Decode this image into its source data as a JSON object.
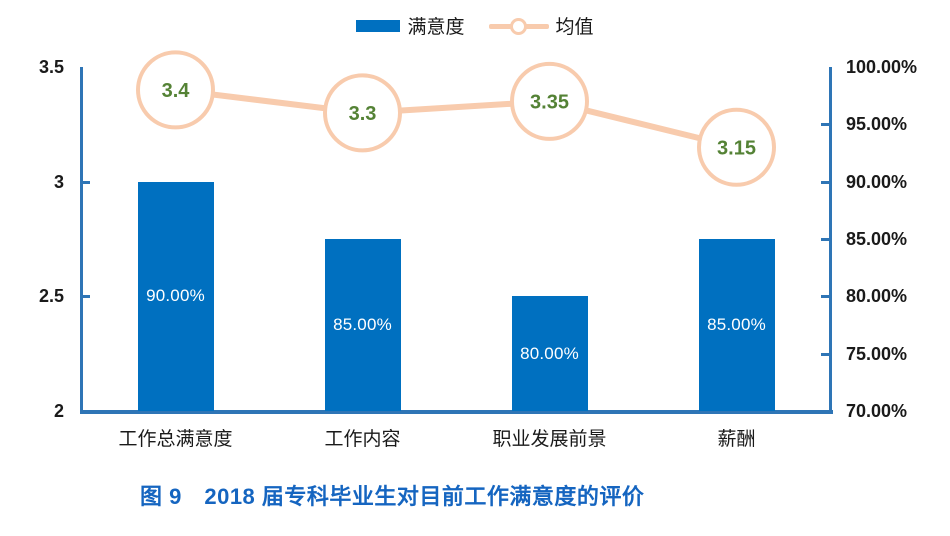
{
  "caption": "图 9　2018 届专科毕业生对目前工作满意度的评价",
  "colors": {
    "bar": "#0070C0",
    "axis": "#2E75B6",
    "mean_line": "#F8CBAD",
    "mean_value_text": "#548235",
    "bar_value_text": "#FFFFFF",
    "caption_text": "#1565C0",
    "tick_text": "#1A1A1A"
  },
  "chart_data": {
    "type": "combo",
    "categories": [
      "工作总满意度",
      "工作内容",
      "职业发展前景",
      "薪酬"
    ],
    "series": [
      {
        "name": "满意度",
        "type": "bar",
        "axis": "right",
        "values": [
          90,
          85,
          80,
          85
        ],
        "data_labels": [
          "90.00%",
          "85.00%",
          "80.00%",
          "85.00%"
        ]
      },
      {
        "name": "均值",
        "type": "line",
        "axis": "left",
        "values": [
          3.4,
          3.3,
          3.35,
          3.15
        ],
        "data_labels": [
          "3.4",
          "3.3",
          "3.35",
          "3.15"
        ]
      }
    ],
    "left_axis": {
      "min": 2,
      "max": 3.5,
      "tick_labels": [
        "3.5",
        "3",
        "2.5",
        "2"
      ],
      "tick_values": [
        3.5,
        3,
        2.5,
        2
      ]
    },
    "right_axis": {
      "min": 70,
      "max": 100,
      "tick_labels": [
        "100.00%",
        "95.00%",
        "90.00%",
        "85.00%",
        "80.00%",
        "75.00%",
        "70.00%"
      ],
      "tick_values": [
        100,
        95,
        90,
        85,
        80,
        75,
        70
      ]
    },
    "grid": false,
    "legend_position": "top-center"
  }
}
